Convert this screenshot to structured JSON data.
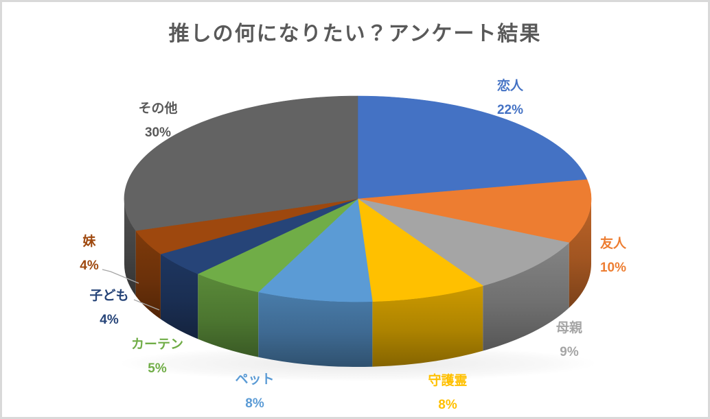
{
  "chart": {
    "title": "推しの何になりたい？アンケート結果",
    "title_color": "#595959",
    "background": "#FFFFFF",
    "frame_border_color": "#D9D9D9",
    "leader_line_color": "#A6A6A6"
  },
  "chart_data": {
    "type": "pie",
    "subtype": "pie-3d",
    "title": "推しの何になりたい？アンケート結果",
    "unit": "%",
    "direction": "clockwise",
    "start_angle_deg": 0,
    "legend": "none",
    "grid": false,
    "labels": [
      "恋人",
      "友人",
      "母親",
      "守護霊",
      "ペット",
      "カーテン",
      "子ども",
      "妹",
      "その他"
    ],
    "values": [
      22,
      10,
      9,
      8,
      8,
      5,
      4,
      4,
      30
    ],
    "display_values": [
      "22%",
      "10%",
      "9%",
      "8%",
      "8%",
      "5%",
      "4%",
      "4%",
      "30%"
    ],
    "colors": [
      "#4472C4",
      "#ED7D31",
      "#A5A5A5",
      "#FFC000",
      "#5B9BD5",
      "#70AD47",
      "#264478",
      "#9E480E",
      "#636363"
    ],
    "label_colors": [
      "#4472C4",
      "#ED7D31",
      "#A5A5A5",
      "#FFC000",
      "#5B9BD5",
      "#70AD47",
      "#264478",
      "#9E480E",
      "#595959"
    ]
  }
}
